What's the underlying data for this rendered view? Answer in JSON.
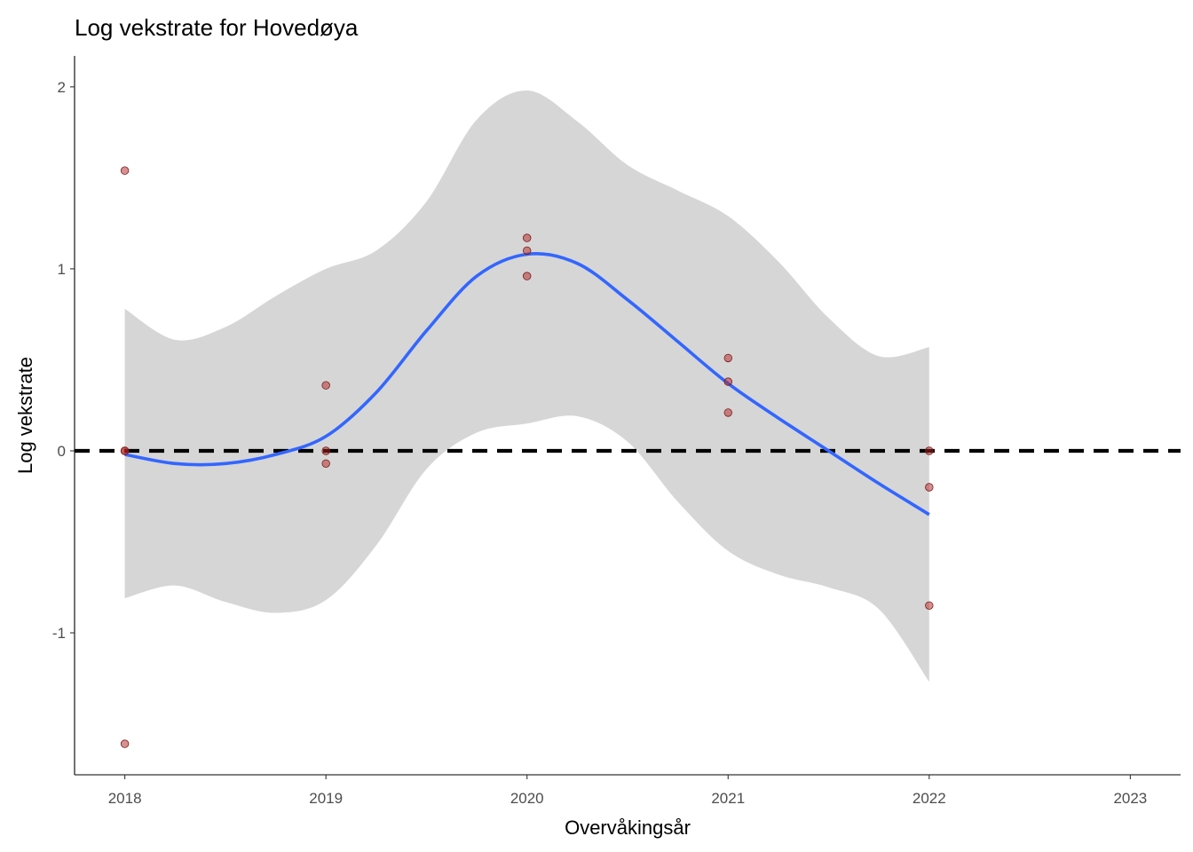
{
  "chart_data": {
    "type": "scatter",
    "title": "Log vekstrate for Hovedøya",
    "xlabel": "Overvåkingsår",
    "ylabel": "Log vekstrate",
    "xlim": [
      2017.75,
      2023.25
    ],
    "ylim": [
      -1.78,
      2.17
    ],
    "x_ticks": [
      2018,
      2019,
      2020,
      2021,
      2022,
      2023
    ],
    "x_tick_labels": [
      "2018",
      "2019",
      "2020",
      "2021",
      "2022",
      "2023"
    ],
    "y_ticks": [
      -1,
      0,
      1,
      2
    ],
    "y_tick_labels": [
      "-1",
      "0",
      "1",
      "2"
    ],
    "grid": false,
    "reference_line": {
      "y": 0,
      "style": "dashed",
      "color": "#000000"
    },
    "points": {
      "color": "#b22222",
      "x": [
        2018,
        2018,
        2018,
        2018,
        2019,
        2019,
        2019,
        2020,
        2020,
        2020,
        2021,
        2021,
        2021,
        2022,
        2022,
        2022
      ],
      "y": [
        1.54,
        0.0,
        0.0,
        -1.61,
        0.36,
        0.0,
        -0.07,
        1.17,
        1.1,
        0.96,
        0.51,
        0.38,
        0.21,
        0.0,
        -0.2,
        -0.85
      ]
    },
    "smooth": {
      "color": "#3366ff",
      "band_color": "#d6d6d6",
      "x": [
        2018.0,
        2018.25,
        2018.5,
        2018.75,
        2019.0,
        2019.25,
        2019.5,
        2019.75,
        2020.0,
        2020.25,
        2020.5,
        2020.75,
        2021.0,
        2021.25,
        2021.5,
        2021.75,
        2022.0
      ],
      "y": [
        -0.02,
        -0.07,
        -0.07,
        -0.02,
        0.08,
        0.32,
        0.66,
        0.96,
        1.08,
        1.03,
        0.83,
        0.6,
        0.37,
        0.18,
        0.0,
        -0.18,
        -0.35
      ],
      "ymin": [
        -0.81,
        -0.74,
        -0.83,
        -0.89,
        -0.82,
        -0.52,
        -0.1,
        0.1,
        0.15,
        0.19,
        0.05,
        -0.28,
        -0.55,
        -0.68,
        -0.75,
        -0.87,
        -1.27
      ],
      "ymax": [
        0.78,
        0.61,
        0.68,
        0.85,
        1.0,
        1.1,
        1.37,
        1.82,
        1.98,
        1.81,
        1.57,
        1.43,
        1.29,
        1.04,
        0.73,
        0.52,
        0.57
      ]
    }
  }
}
